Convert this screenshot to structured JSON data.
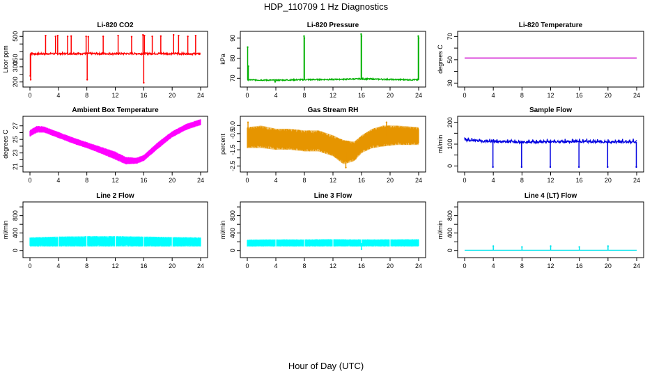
{
  "title": "HDP_110709  1 Hz Diagnostics",
  "xlabel": "Hour of Day (UTC)",
  "chart_data": [
    {
      "type": "line",
      "title": "Li-820 CO2",
      "ylabel": "Licor ppm",
      "color": "#ff0000",
      "xlim": [
        0,
        24
      ],
      "x_ticks": [
        0,
        4,
        8,
        12,
        16,
        20,
        24
      ],
      "ylim": [
        185,
        515
      ],
      "y_ticks": [
        200,
        250,
        300,
        350,
        400,
        450,
        500
      ],
      "y_tick_labels": [
        "200",
        "",
        "300",
        "350",
        "",
        "",
        "500"
      ],
      "baseline": [
        [
          0.0,
          385
        ],
        [
          6,
          387
        ],
        [
          12,
          386
        ],
        [
          18,
          387
        ],
        [
          24,
          385
        ]
      ],
      "band": 6,
      "spikes": [
        [
          0.05,
          240
        ],
        [
          0.1,
          215
        ],
        [
          0.2,
          390
        ],
        [
          2.2,
          505
        ],
        [
          3.6,
          500
        ],
        [
          3.9,
          505
        ],
        [
          5.3,
          500
        ],
        [
          5.8,
          502
        ],
        [
          7.9,
          500
        ],
        [
          8.05,
          215
        ],
        [
          8.2,
          498
        ],
        [
          10.3,
          500
        ],
        [
          12.4,
          505
        ],
        [
          14.3,
          498
        ],
        [
          15.9,
          510
        ],
        [
          16.0,
          195
        ],
        [
          16.1,
          505
        ],
        [
          17.2,
          500
        ],
        [
          18.4,
          502
        ],
        [
          20.2,
          510
        ],
        [
          20.9,
          505
        ],
        [
          22.2,
          500
        ],
        [
          23.3,
          505
        ]
      ]
    },
    {
      "type": "line",
      "title": "Li-820 Pressure",
      "ylabel": "kPa",
      "color": "#00b000",
      "xlim": [
        0,
        24
      ],
      "x_ticks": [
        0,
        4,
        8,
        12,
        16,
        20,
        24
      ],
      "ylim": [
        67,
        92
      ],
      "y_ticks": [
        70,
        75,
        80,
        85,
        90
      ],
      "y_tick_labels": [
        "70",
        "",
        "80",
        "",
        "90"
      ],
      "baseline": [
        [
          0.0,
          69.2
        ],
        [
          4,
          69.0
        ],
        [
          8,
          69.3
        ],
        [
          12,
          69.4
        ],
        [
          16,
          69.7
        ],
        [
          20,
          69.4
        ],
        [
          24,
          69.2
        ]
      ],
      "band": 0.3,
      "spikes": [
        [
          0.05,
          85.5
        ],
        [
          0.15,
          76
        ],
        [
          3.9,
          68.2
        ],
        [
          7.95,
          91
        ],
        [
          8.0,
          90
        ],
        [
          15.95,
          92
        ],
        [
          16.0,
          91
        ],
        [
          23.95,
          91
        ],
        [
          24.0,
          90
        ]
      ]
    },
    {
      "type": "line",
      "title": "Li-820 Temperature",
      "ylabel": "degrees C",
      "color": "#cc00cc",
      "xlim": [
        0,
        24
      ],
      "x_ticks": [
        0,
        4,
        8,
        12,
        16,
        20,
        24
      ],
      "ylim": [
        29,
        72
      ],
      "y_ticks": [
        30,
        40,
        50,
        60,
        70
      ],
      "y_tick_labels": [
        "30",
        "",
        "50",
        "",
        "70"
      ],
      "baseline": [
        [
          0.0,
          51.5
        ],
        [
          24,
          51.5
        ]
      ],
      "band": 0,
      "spikes": []
    },
    {
      "type": "area",
      "title": "Ambient Box Temperature",
      "ylabel": "degrees C",
      "color": "#ff00ff",
      "xlim": [
        0,
        24
      ],
      "x_ticks": [
        0,
        4,
        8,
        12,
        16,
        20,
        24
      ],
      "ylim": [
        20.6,
        28.0
      ],
      "y_ticks": [
        21,
        22,
        23,
        24,
        25,
        26,
        27
      ],
      "y_tick_labels": [
        "21",
        "",
        "23",
        "",
        "25",
        "",
        "27"
      ],
      "upper": [
        [
          0.0,
          26.4
        ],
        [
          1,
          27.0
        ],
        [
          2,
          26.9
        ],
        [
          4,
          26.1
        ],
        [
          6,
          25.3
        ],
        [
          8,
          24.6
        ],
        [
          10,
          23.9
        ],
        [
          12,
          23.2
        ],
        [
          13.5,
          22.4
        ],
        [
          15,
          22.3
        ],
        [
          16,
          22.7
        ],
        [
          18,
          24.6
        ],
        [
          20,
          26.2
        ],
        [
          22,
          27.3
        ],
        [
          24,
          28.0
        ]
      ],
      "lower": [
        [
          0.0,
          25.4
        ],
        [
          1,
          26.0
        ],
        [
          2,
          26.0
        ],
        [
          4,
          25.2
        ],
        [
          6,
          24.4
        ],
        [
          8,
          23.7
        ],
        [
          10,
          22.9
        ],
        [
          12,
          22.0
        ],
        [
          13.5,
          21.3
        ],
        [
          15,
          21.4
        ],
        [
          16,
          21.8
        ],
        [
          18,
          23.6
        ],
        [
          20,
          25.3
        ],
        [
          22,
          26.4
        ],
        [
          24,
          27.1
        ]
      ],
      "spikes": []
    },
    {
      "type": "area",
      "title": "Gas Stream RH",
      "ylabel": "percent",
      "color": "#e69500",
      "xlim": [
        0,
        24
      ],
      "x_ticks": [
        0,
        4,
        8,
        12,
        16,
        20,
        24
      ],
      "ylim": [
        -2.7,
        0.4
      ],
      "y_ticks": [
        -2.5,
        -2.0,
        -1.5,
        -1.0,
        -0.5,
        0.0
      ],
      "y_tick_labels": [
        "-2.5",
        "",
        "-1.5",
        "",
        "-0.5",
        "0.0"
      ],
      "upper": [
        [
          0.0,
          -0.1
        ],
        [
          2,
          0.0
        ],
        [
          4,
          -0.2
        ],
        [
          6,
          -0.2
        ],
        [
          8,
          -0.3
        ],
        [
          10,
          -0.3
        ],
        [
          12,
          -0.6
        ],
        [
          13.5,
          -0.9
        ],
        [
          15,
          -1.0
        ],
        [
          16,
          -0.6
        ],
        [
          17.5,
          -0.2
        ],
        [
          19,
          0.0
        ],
        [
          21,
          0.0
        ],
        [
          24,
          -0.1
        ]
      ],
      "lower": [
        [
          0.0,
          -1.4
        ],
        [
          2,
          -1.4
        ],
        [
          4,
          -1.5
        ],
        [
          6,
          -1.5
        ],
        [
          8,
          -1.6
        ],
        [
          10,
          -1.6
        ],
        [
          12,
          -1.9
        ],
        [
          13.5,
          -2.4
        ],
        [
          15,
          -2.2
        ],
        [
          16,
          -1.7
        ],
        [
          17.5,
          -1.4
        ],
        [
          19,
          -1.3
        ],
        [
          21,
          -1.2
        ],
        [
          24,
          -1.2
        ]
      ],
      "spikes": [
        [
          13.8,
          -2.6
        ],
        [
          0.1,
          0.2
        ],
        [
          19.5,
          0.2
        ]
      ]
    },
    {
      "type": "line",
      "title": "Sample Flow",
      "ylabel": "ml/min",
      "color": "#0000e0",
      "xlim": [
        0,
        24
      ],
      "x_ticks": [
        0,
        4,
        8,
        12,
        16,
        20,
        24
      ],
      "ylim": [
        -15,
        215
      ],
      "y_ticks": [
        0,
        50,
        100,
        150,
        200
      ],
      "y_tick_labels": [
        "0",
        "",
        "100",
        "",
        "200"
      ],
      "baseline": [
        [
          0.0,
          118
        ],
        [
          4,
          112
        ],
        [
          8,
          110
        ],
        [
          12,
          110
        ],
        [
          16,
          112
        ],
        [
          20,
          110
        ],
        [
          24,
          110
        ]
      ],
      "band": 5,
      "spikes": [
        [
          0.1,
          125
        ],
        [
          3.95,
          -5
        ],
        [
          7.95,
          -5
        ],
        [
          11.95,
          -5
        ],
        [
          15.95,
          -5
        ],
        [
          19.95,
          -5
        ],
        [
          23.95,
          -5
        ]
      ],
      "ripple_period": 0.5,
      "ripple_amp": 10
    },
    {
      "type": "area",
      "title": "Line 2 Flow",
      "ylabel": "ml/min",
      "color": "#00ffff",
      "xlim": [
        0,
        24
      ],
      "x_ticks": [
        0,
        4,
        8,
        12,
        16,
        20,
        24
      ],
      "ylim": [
        -100,
        1050
      ],
      "y_ticks": [
        0,
        200,
        400,
        600,
        800,
        1000
      ],
      "y_tick_labels": [
        "0",
        "",
        "400",
        "",
        "800",
        ""
      ],
      "upper": [
        [
          0.0,
          300
        ],
        [
          4,
          320
        ],
        [
          8,
          330
        ],
        [
          12,
          330
        ],
        [
          16,
          320
        ],
        [
          20,
          310
        ],
        [
          24,
          300
        ]
      ],
      "lower": [
        [
          0.0,
          90
        ],
        [
          24,
          90
        ]
      ],
      "gaps": [
        4.0,
        8.0,
        12.0,
        16.0,
        20.0
      ],
      "spikes": []
    },
    {
      "type": "area",
      "title": "Line 3 Flow",
      "ylabel": "ml/min",
      "color": "#00ffff",
      "xlim": [
        0,
        24
      ],
      "x_ticks": [
        0,
        4,
        8,
        12,
        16,
        20,
        24
      ],
      "ylim": [
        -100,
        1050
      ],
      "y_ticks": [
        0,
        200,
        400,
        600,
        800,
        1000
      ],
      "y_tick_labels": [
        "0",
        "",
        "400",
        "",
        "800",
        ""
      ],
      "upper": [
        [
          0.0,
          250
        ],
        [
          4,
          255
        ],
        [
          8,
          255
        ],
        [
          12,
          260
        ],
        [
          16,
          255
        ],
        [
          20,
          255
        ],
        [
          24,
          260
        ]
      ],
      "lower": [
        [
          0.0,
          90
        ],
        [
          24,
          90
        ]
      ],
      "gaps": [
        4.0,
        8.0,
        12.0,
        16.0,
        20.0
      ],
      "spikes": [
        [
          16.0,
          30
        ]
      ]
    },
    {
      "type": "line",
      "title": "Line 4 (LT) Flow",
      "ylabel": "ml/min",
      "color": "#00e5ee",
      "xlim": [
        0,
        24
      ],
      "x_ticks": [
        0,
        4,
        8,
        12,
        16,
        20,
        24
      ],
      "ylim": [
        -100,
        1050
      ],
      "y_ticks": [
        0,
        200,
        400,
        600,
        800,
        1000
      ],
      "y_tick_labels": [
        "0",
        "",
        "400",
        "",
        "800",
        ""
      ],
      "baseline": [
        [
          0.0,
          5
        ],
        [
          24,
          5
        ]
      ],
      "band": 0,
      "spikes": [
        [
          4.0,
          100
        ],
        [
          8.0,
          80
        ],
        [
          12.0,
          100
        ],
        [
          16.0,
          80
        ],
        [
          20.0,
          100
        ]
      ]
    }
  ]
}
